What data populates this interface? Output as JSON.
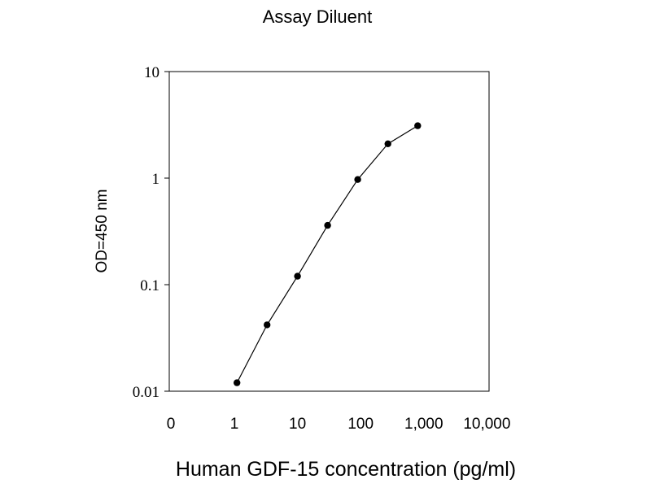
{
  "chart_data": {
    "type": "line",
    "title": "Assay Diluent",
    "xlabel": "Human GDF-15 concentration (pg/ml)",
    "ylabel": "OD=450 nm",
    "x_scale": "log",
    "y_scale": "log",
    "x_tick_labels": [
      "0",
      "1",
      "10",
      "100",
      "1,000",
      "10,000"
    ],
    "y_tick_labels": [
      "10",
      "1",
      "0.1",
      "0.01"
    ],
    "ylim": [
      0.01,
      10
    ],
    "grid": false,
    "legend": "none",
    "line_color": "#000000",
    "series": [
      {
        "x": [
          1.1,
          3.3,
          10,
          30,
          90,
          270,
          800
        ],
        "y": [
          0.012,
          0.042,
          0.12,
          0.36,
          0.97,
          2.1,
          3.1
        ]
      }
    ]
  }
}
